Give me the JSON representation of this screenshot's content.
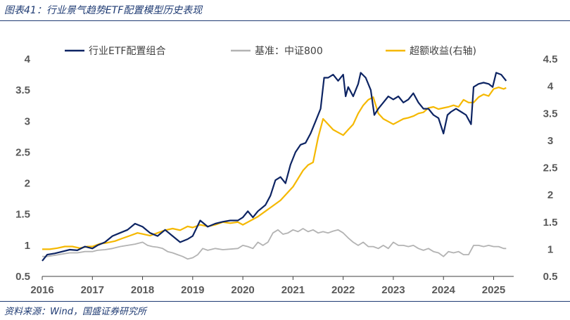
{
  "header": {
    "title": "图表41：行业景气趋势ETF配置模型历史表现"
  },
  "footer": {
    "source": "资料来源：Wind，国盛证券研究所"
  },
  "chart_data": {
    "type": "line",
    "x_tick_labels": [
      "2016",
      "2017",
      "2018",
      "2019",
      "2020",
      "2021",
      "2022",
      "2023",
      "2024",
      "2025"
    ],
    "xlim": [
      2016.0,
      2025.4
    ],
    "left_axis": {
      "ylim": [
        0.5,
        4.0
      ],
      "ticks": [
        "0.5",
        "1",
        "1.5",
        "2",
        "2.5",
        "3",
        "3.5",
        "4"
      ]
    },
    "right_axis": {
      "ylim": [
        0.5,
        4.5
      ],
      "ticks": [
        "0.5",
        "1",
        "1.5",
        "2",
        "2.5",
        "3",
        "3.5",
        "4",
        "4.5"
      ]
    },
    "grid": false,
    "legend_position": "top",
    "series": [
      {
        "name": "行业ETF配置组合",
        "axis": "left",
        "color": "#0d2463",
        "x": [
          2016.0,
          2016.1,
          2016.25,
          2016.4,
          2016.55,
          2016.7,
          2016.85,
          2017.0,
          2017.1,
          2017.25,
          2017.4,
          2017.55,
          2017.7,
          2017.85,
          2018.0,
          2018.15,
          2018.3,
          2018.45,
          2018.6,
          2018.75,
          2018.9,
          2019.0,
          2019.15,
          2019.3,
          2019.45,
          2019.6,
          2019.75,
          2019.9,
          2020.0,
          2020.1,
          2020.2,
          2020.3,
          2020.45,
          2020.55,
          2020.65,
          2020.75,
          2020.85,
          2020.95,
          2021.05,
          2021.15,
          2021.25,
          2021.35,
          2021.45,
          2021.55,
          2021.62,
          2021.7,
          2021.8,
          2021.9,
          2022.0,
          2022.05,
          2022.1,
          2022.2,
          2022.3,
          2022.35,
          2022.45,
          2022.55,
          2022.62,
          2022.7,
          2022.8,
          2022.9,
          2023.0,
          2023.1,
          2023.2,
          2023.3,
          2023.4,
          2023.5,
          2023.6,
          2023.7,
          2023.8,
          2023.9,
          2024.0,
          2024.08,
          2024.15,
          2024.25,
          2024.35,
          2024.45,
          2024.55,
          2024.6,
          2024.7,
          2024.8,
          2024.9,
          2024.98,
          2025.05,
          2025.15,
          2025.25
        ],
        "y": [
          0.75,
          0.85,
          0.87,
          0.9,
          0.93,
          0.92,
          0.98,
          0.95,
          1.0,
          1.05,
          1.15,
          1.2,
          1.25,
          1.35,
          1.3,
          1.2,
          1.15,
          1.25,
          1.15,
          1.05,
          1.1,
          1.15,
          1.4,
          1.3,
          1.35,
          1.38,
          1.4,
          1.4,
          1.45,
          1.55,
          1.45,
          1.55,
          1.65,
          1.8,
          2.05,
          2.1,
          2.0,
          2.3,
          2.5,
          2.62,
          2.65,
          2.8,
          3.0,
          3.2,
          3.7,
          3.7,
          3.75,
          3.65,
          3.75,
          3.4,
          3.55,
          3.4,
          3.6,
          3.78,
          3.7,
          3.5,
          3.1,
          3.2,
          3.3,
          3.4,
          3.35,
          3.4,
          3.3,
          3.35,
          3.45,
          3.3,
          3.2,
          3.2,
          3.1,
          3.05,
          2.8,
          3.1,
          3.15,
          3.2,
          3.15,
          3.1,
          2.95,
          3.55,
          3.6,
          3.62,
          3.6,
          3.55,
          3.78,
          3.75,
          3.65
        ]
      },
      {
        "name": "基准：中证800",
        "axis": "left",
        "color": "#b3b3b3",
        "x": [
          2016.0,
          2016.1,
          2016.25,
          2016.4,
          2016.55,
          2016.7,
          2016.85,
          2017.0,
          2017.1,
          2017.25,
          2017.4,
          2017.55,
          2017.7,
          2017.85,
          2018.0,
          2018.1,
          2018.2,
          2018.3,
          2018.4,
          2018.5,
          2018.6,
          2018.7,
          2018.8,
          2018.9,
          2019.0,
          2019.1,
          2019.2,
          2019.3,
          2019.45,
          2019.6,
          2019.75,
          2019.9,
          2020.0,
          2020.1,
          2020.2,
          2020.3,
          2020.4,
          2020.5,
          2020.6,
          2020.7,
          2020.8,
          2020.9,
          2021.0,
          2021.1,
          2021.2,
          2021.3,
          2021.4,
          2021.5,
          2021.6,
          2021.7,
          2021.8,
          2021.9,
          2022.0,
          2022.1,
          2022.2,
          2022.3,
          2022.4,
          2022.5,
          2022.6,
          2022.7,
          2022.8,
          2022.9,
          2023.0,
          2023.1,
          2023.2,
          2023.3,
          2023.4,
          2023.5,
          2023.6,
          2023.7,
          2023.8,
          2023.9,
          2024.0,
          2024.1,
          2024.2,
          2024.3,
          2024.4,
          2024.5,
          2024.6,
          2024.7,
          2024.8,
          2024.9,
          2025.0,
          2025.1,
          2025.2,
          2025.25
        ],
        "y": [
          0.82,
          0.82,
          0.84,
          0.86,
          0.88,
          0.88,
          0.9,
          0.9,
          0.92,
          0.93,
          0.95,
          0.98,
          1.0,
          1.02,
          1.05,
          1.0,
          0.98,
          0.97,
          0.95,
          0.9,
          0.88,
          0.85,
          0.82,
          0.78,
          0.8,
          0.85,
          0.95,
          0.92,
          0.95,
          0.93,
          0.94,
          0.95,
          1.0,
          0.98,
          0.95,
          1.05,
          1.0,
          1.05,
          1.2,
          1.25,
          1.18,
          1.2,
          1.25,
          1.22,
          1.27,
          1.22,
          1.25,
          1.2,
          1.22,
          1.2,
          1.23,
          1.25,
          1.2,
          1.12,
          1.05,
          1.0,
          1.05,
          0.98,
          0.98,
          0.95,
          1.0,
          0.95,
          1.05,
          1.0,
          1.0,
          0.98,
          1.0,
          0.95,
          0.92,
          0.95,
          0.9,
          0.88,
          0.82,
          0.9,
          0.88,
          0.9,
          0.85,
          0.85,
          1.0,
          1.0,
          0.98,
          1.0,
          0.98,
          0.98,
          0.95,
          0.95
        ]
      },
      {
        "name": "超额收益(右轴)",
        "axis": "right",
        "color": "#f5b800",
        "x": [
          2016.0,
          2016.15,
          2016.3,
          2016.45,
          2016.6,
          2016.75,
          2016.9,
          2017.0,
          2017.15,
          2017.3,
          2017.45,
          2017.6,
          2017.75,
          2017.9,
          2018.0,
          2018.15,
          2018.3,
          2018.45,
          2018.6,
          2018.75,
          2018.9,
          2019.0,
          2019.15,
          2019.3,
          2019.45,
          2019.6,
          2019.75,
          2019.9,
          2020.0,
          2020.1,
          2020.2,
          2020.3,
          2020.45,
          2020.6,
          2020.75,
          2020.9,
          2021.0,
          2021.1,
          2021.2,
          2021.3,
          2021.4,
          2021.5,
          2021.6,
          2021.7,
          2021.8,
          2021.9,
          2022.0,
          2022.1,
          2022.2,
          2022.3,
          2022.4,
          2022.5,
          2022.6,
          2022.7,
          2022.8,
          2022.9,
          2023.0,
          2023.1,
          2023.2,
          2023.3,
          2023.4,
          2023.5,
          2023.6,
          2023.7,
          2023.8,
          2023.9,
          2024.0,
          2024.1,
          2024.2,
          2024.3,
          2024.4,
          2024.5,
          2024.6,
          2024.7,
          2024.8,
          2024.9,
          2025.0,
          2025.1,
          2025.2,
          2025.25
        ],
        "y": [
          1.0,
          1.0,
          1.02,
          1.05,
          1.05,
          1.02,
          1.05,
          1.05,
          1.1,
          1.12,
          1.15,
          1.2,
          1.25,
          1.3,
          1.28,
          1.25,
          1.3,
          1.35,
          1.38,
          1.35,
          1.42,
          1.4,
          1.45,
          1.42,
          1.45,
          1.5,
          1.48,
          1.5,
          1.45,
          1.5,
          1.55,
          1.6,
          1.7,
          1.8,
          1.9,
          2.05,
          2.15,
          2.3,
          2.45,
          2.55,
          2.6,
          3.05,
          3.4,
          3.3,
          3.2,
          3.15,
          3.1,
          3.2,
          3.3,
          3.5,
          3.65,
          3.75,
          3.8,
          3.5,
          3.4,
          3.35,
          3.3,
          3.35,
          3.4,
          3.42,
          3.45,
          3.5,
          3.52,
          3.6,
          3.62,
          3.58,
          3.6,
          3.62,
          3.65,
          3.62,
          3.75,
          3.7,
          3.7,
          3.8,
          3.85,
          3.82,
          3.95,
          3.98,
          3.95,
          3.97
        ]
      }
    ]
  }
}
